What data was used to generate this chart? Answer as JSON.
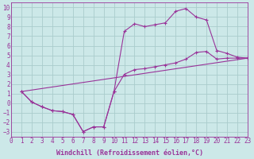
{
  "xlabel": "Windchill (Refroidissement éolien,°C)",
  "bg_color": "#cce8e8",
  "grid_color": "#aacccc",
  "line_color": "#993399",
  "xlim": [
    0,
    23
  ],
  "ylim": [
    -3.5,
    10.5
  ],
  "xticks": [
    0,
    1,
    2,
    3,
    4,
    5,
    6,
    7,
    8,
    9,
    10,
    11,
    12,
    13,
    14,
    15,
    16,
    17,
    18,
    19,
    20,
    21,
    22,
    23
  ],
  "yticks": [
    -3,
    -2,
    -1,
    0,
    1,
    2,
    3,
    4,
    5,
    6,
    7,
    8,
    9,
    10
  ],
  "line1_x": [
    1,
    2,
    3,
    4,
    5,
    6,
    7,
    8,
    9,
    10,
    11,
    12,
    13,
    14,
    15,
    16,
    17,
    18,
    19,
    20,
    21,
    22,
    23
  ],
  "line1_y": [
    1.2,
    0.1,
    -0.4,
    -0.8,
    -0.9,
    -1.2,
    -3.0,
    -2.5,
    -2.5,
    1.2,
    7.5,
    8.3,
    8.0,
    8.2,
    8.4,
    9.6,
    9.9,
    9.0,
    8.7,
    5.5,
    5.2,
    4.8,
    4.7
  ],
  "line2_x": [
    1,
    2,
    3,
    4,
    5,
    6,
    7,
    8,
    9,
    10,
    11,
    12,
    13,
    14,
    15,
    16,
    17,
    18,
    19,
    20,
    21,
    22,
    23
  ],
  "line2_y": [
    1.2,
    0.1,
    -0.4,
    -0.8,
    -0.9,
    -1.2,
    -3.0,
    -2.5,
    -2.5,
    1.2,
    3.0,
    3.5,
    3.6,
    3.8,
    4.0,
    4.2,
    4.6,
    5.3,
    5.4,
    4.6,
    4.7,
    4.7,
    4.7
  ],
  "line3_x": [
    1,
    23
  ],
  "line3_y": [
    1.2,
    4.7
  ],
  "font_color": "#993399",
  "tick_fontsize": 5.5,
  "label_fontsize": 6.0
}
